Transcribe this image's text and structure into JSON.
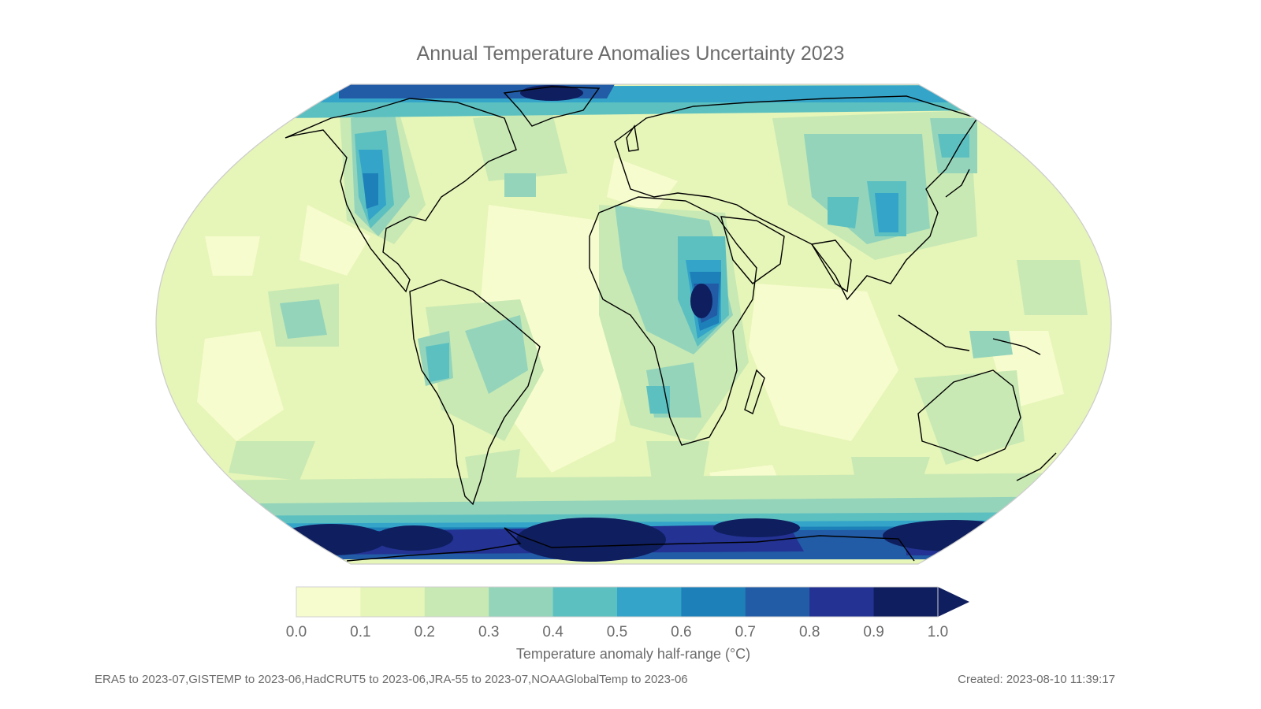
{
  "title": "Annual Temperature Anomalies Uncertainty 2023",
  "colorbar": {
    "label": "Temperature anomaly half-range (°C)",
    "ticks": [
      "0.0",
      "0.1",
      "0.2",
      "0.3",
      "0.4",
      "0.5",
      "0.6",
      "0.7",
      "0.8",
      "0.9",
      "1.0"
    ],
    "colors": [
      "#f7fcce",
      "#e6f5b8",
      "#c8e9b4",
      "#94d4bb",
      "#5dc0c0",
      "#34a5c8",
      "#1e80b8",
      "#225ba6",
      "#233293",
      "#0f1e5e"
    ],
    "extend": "max"
  },
  "footer": {
    "sources": "ERA5 to 2023-07,GISTEMP to 2023-06,HadCRUT5 to 2023-06,JRA-55 to 2023-07,NOAAGlobalTemp to 2023-06",
    "created": "Created: 2023-08-10 11:39:17"
  }
}
